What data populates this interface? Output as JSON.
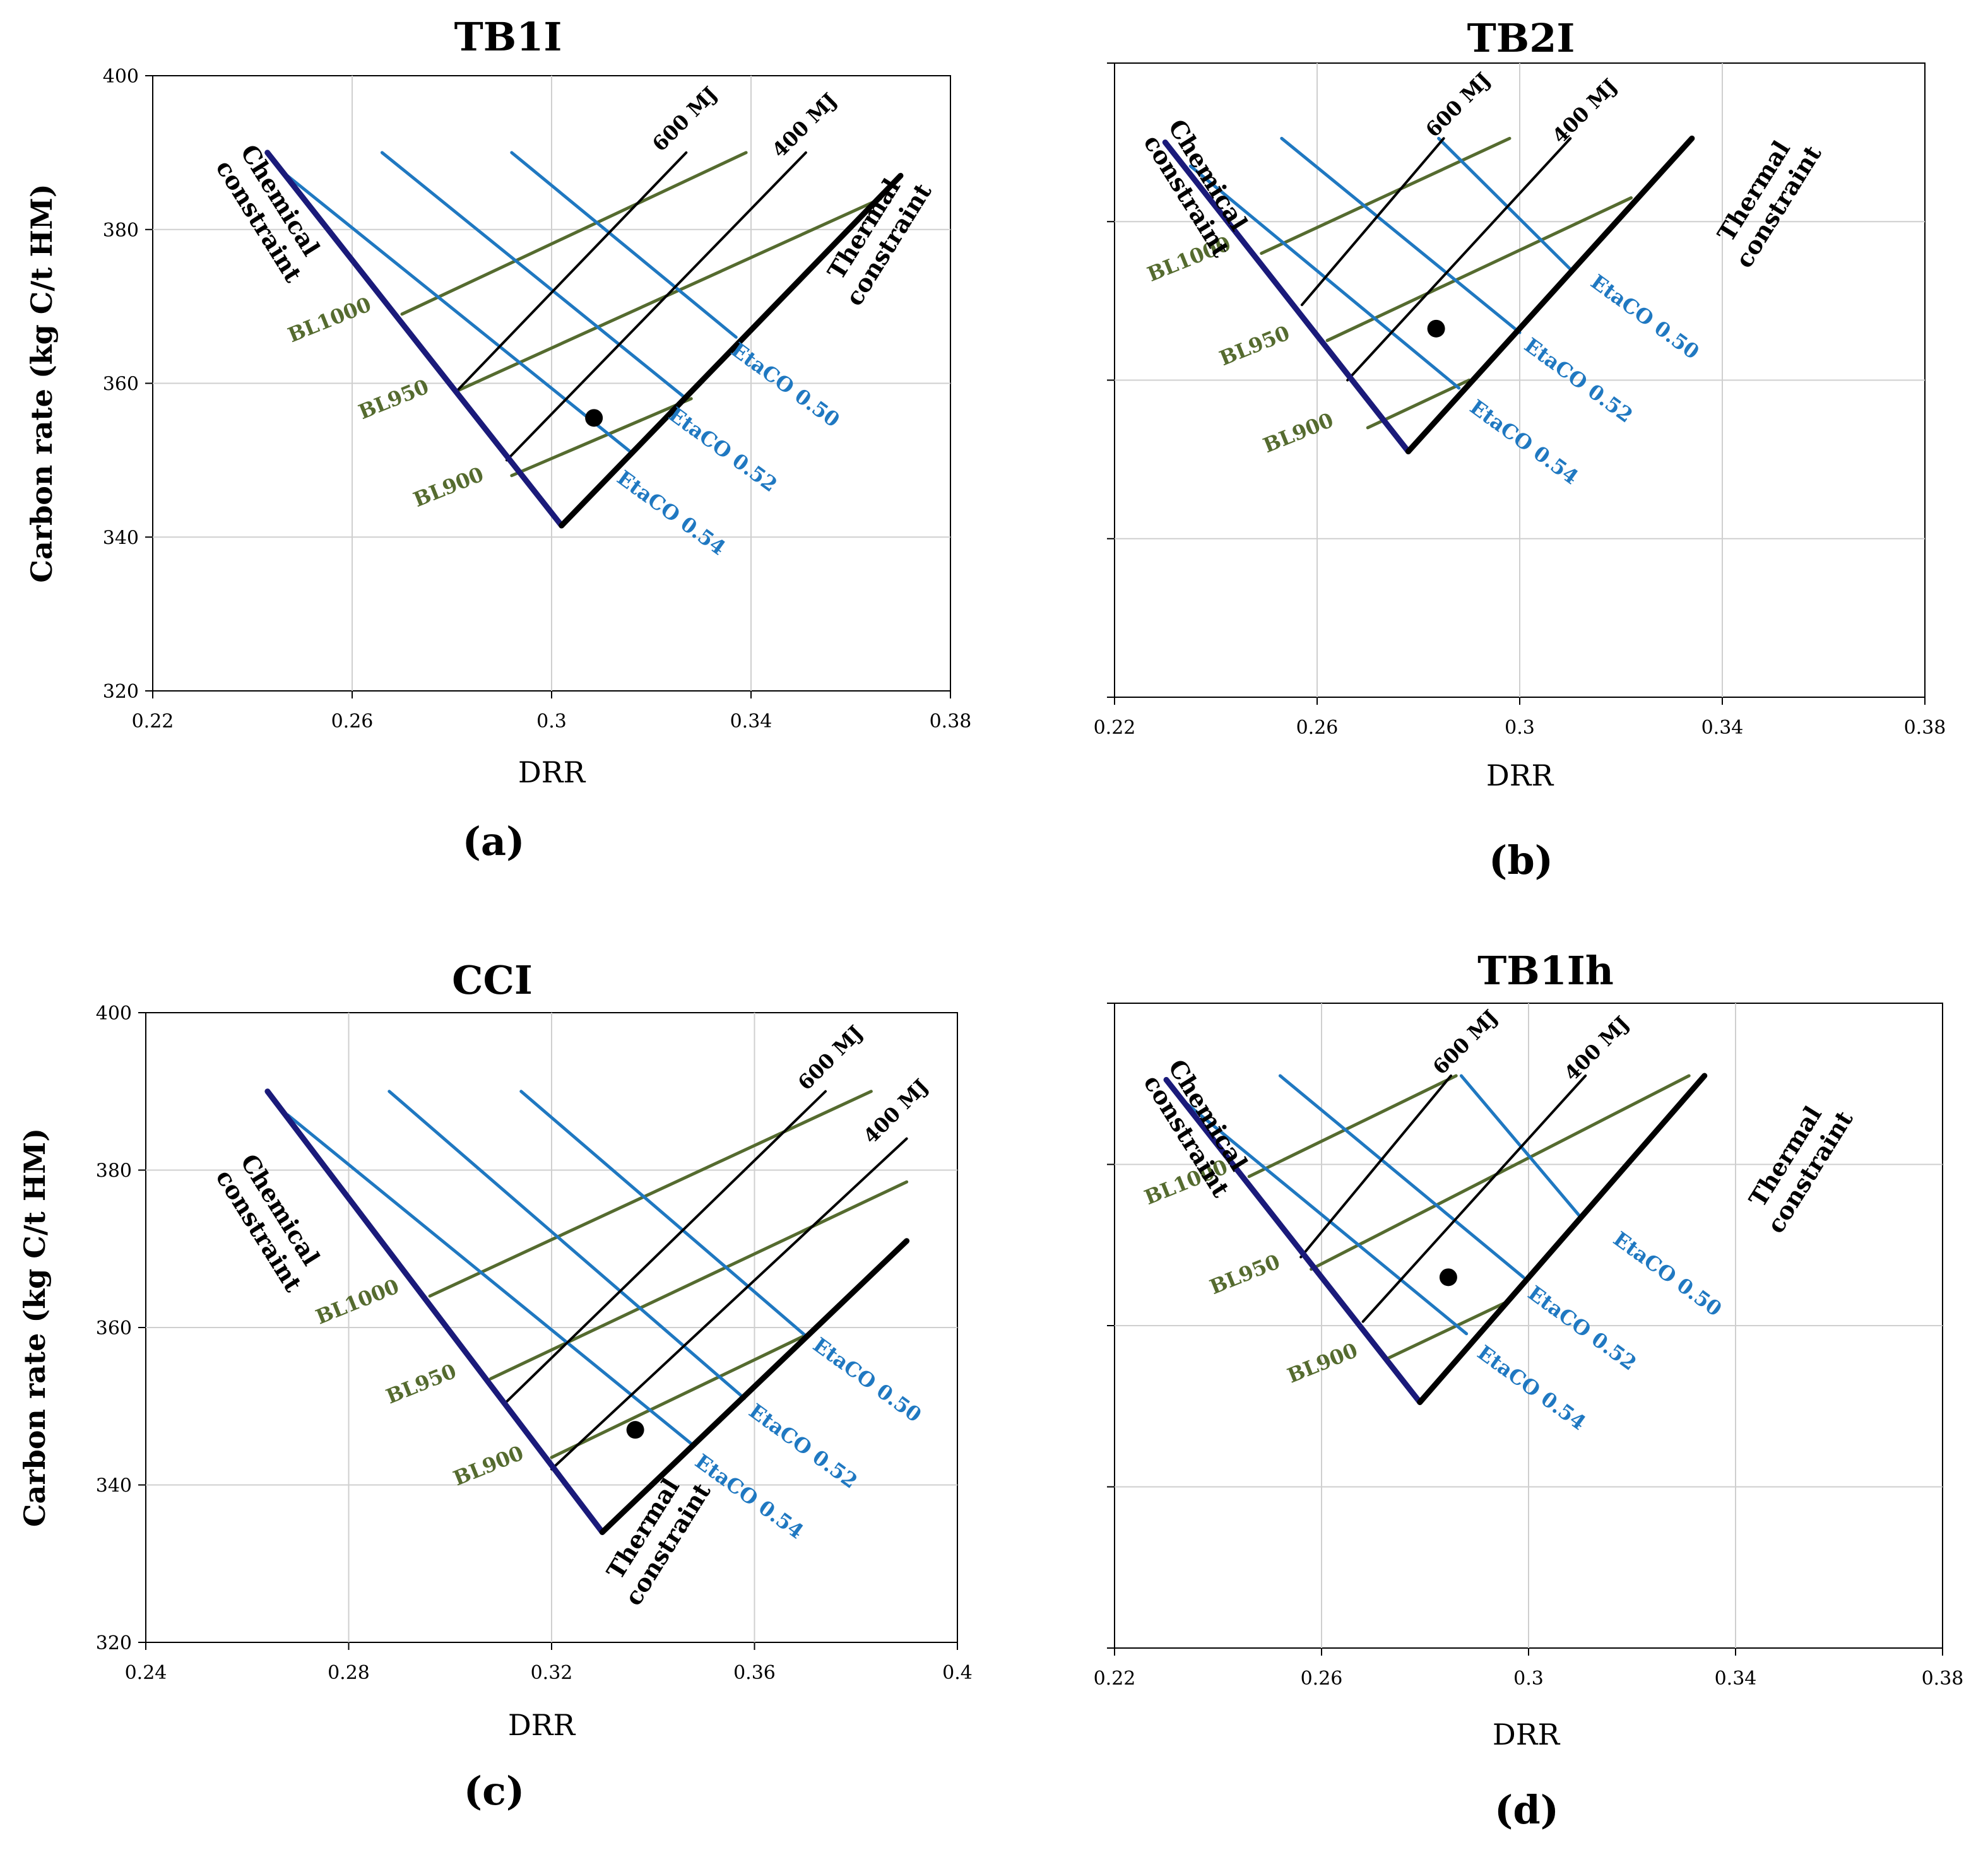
{
  "figure": {
    "ylabel": "Carbon rate (kg C/t HM)",
    "xlabel": "DRR"
  },
  "colors": {
    "chemical_constraint": "#1a1a7a",
    "thermal_constraint": "#000000",
    "etaco": "#1f78c1",
    "bl": "#556b2f",
    "mj": "#000000",
    "grid": "#cfcfcf"
  },
  "chart_data": [
    {
      "type": "line",
      "title": "TB1I",
      "panel_label": "(a)",
      "xlabel": "DRR",
      "ylabel": "Carbon rate (kg C/t HM)",
      "xlim": [
        0.22,
        0.38
      ],
      "ylim": [
        320,
        400
      ],
      "xticks": [
        "0.22",
        "0.26",
        "0.3",
        "0.34",
        "0.38"
      ],
      "yticks": [
        "320",
        "340",
        "360",
        "380",
        "400"
      ],
      "show_ytick_labels": true,
      "grid": true,
      "chemical_label": [
        "Chemical",
        "constraint"
      ],
      "thermal_label": [
        "Thermal",
        "constraint"
      ],
      "series": [
        {
          "name": "Chemical constraint",
          "group": "chemical",
          "x": [
            0.243,
            0.302
          ],
          "y": [
            390,
            341.5
          ]
        },
        {
          "name": "Thermal constraint",
          "group": "thermal",
          "x": [
            0.302,
            0.37
          ],
          "y": [
            341.5,
            387
          ]
        },
        {
          "name": "EtaCO 0.50",
          "group": "etaco",
          "x": [
            0.292,
            0.337
          ],
          "y": [
            390,
            366
          ]
        },
        {
          "name": "EtaCO 0.52",
          "group": "etaco",
          "x": [
            0.266,
            0.327
          ],
          "y": [
            390,
            358
          ]
        },
        {
          "name": "EtaCO 0.54",
          "group": "etaco",
          "x": [
            0.247,
            0.316
          ],
          "y": [
            387,
            351
          ]
        },
        {
          "name": "BL1000",
          "group": "bl",
          "x": [
            0.27,
            0.339
          ],
          "y": [
            369,
            390
          ]
        },
        {
          "name": "BL950",
          "group": "bl",
          "x": [
            0.281,
            0.366
          ],
          "y": [
            359,
            384
          ]
        },
        {
          "name": "BL900",
          "group": "bl",
          "x": [
            0.292,
            0.328
          ],
          "y": [
            348,
            358
          ]
        },
        {
          "name": "600 MJ",
          "group": "mj",
          "x": [
            0.281,
            0.327
          ],
          "y": [
            359,
            390
          ]
        },
        {
          "name": "400 MJ",
          "group": "mj",
          "x": [
            0.291,
            0.351
          ],
          "y": [
            350,
            390
          ]
        }
      ],
      "labels": [
        {
          "text": "BL1000",
          "group": "bl"
        },
        {
          "text": "BL950",
          "group": "bl"
        },
        {
          "text": "BL900",
          "group": "bl"
        },
        {
          "text": "EtaCO 0.50",
          "group": "etaco"
        },
        {
          "text": "EtaCO 0.52",
          "group": "etaco"
        },
        {
          "text": "EtaCO 0.54",
          "group": "etaco"
        },
        {
          "text": "600 MJ",
          "group": "mj"
        },
        {
          "text": "400 MJ",
          "group": "mj"
        }
      ],
      "point": {
        "x": 0.3085,
        "y": 355.5
      }
    },
    {
      "type": "line",
      "title": "TB2I",
      "panel_label": "(b)",
      "xlabel": "DRR",
      "ylabel": "",
      "xlim": [
        0.22,
        0.38
      ],
      "ylim": [
        320,
        400
      ],
      "xticks": [
        "0.22",
        "0.26",
        "0.3",
        "0.34",
        "0.38"
      ],
      "yticks": [
        "320",
        "340",
        "360",
        "380",
        "400"
      ],
      "show_ytick_labels": false,
      "grid": true,
      "chemical_label": [
        "Chemical",
        "constraint"
      ],
      "thermal_label": [
        "Thermal",
        "constraint"
      ],
      "series": [
        {
          "name": "Chemical constraint",
          "group": "chemical",
          "x": [
            0.23,
            0.278
          ],
          "y": [
            390,
            351
          ]
        },
        {
          "name": "Thermal constraint",
          "group": "thermal",
          "x": [
            0.278,
            0.334
          ],
          "y": [
            351,
            390.5
          ]
        },
        {
          "name": "EtaCO 0.50",
          "group": "etaco",
          "x": [
            0.284,
            0.31
          ],
          "y": [
            390.5,
            374
          ]
        },
        {
          "name": "EtaCO 0.52",
          "group": "etaco",
          "x": [
            0.253,
            0.3
          ],
          "y": [
            390.5,
            366
          ]
        },
        {
          "name": "EtaCO 0.54",
          "group": "etaco",
          "x": [
            0.235,
            0.288
          ],
          "y": [
            387,
            359
          ]
        },
        {
          "name": "BL1000",
          "group": "bl",
          "x": [
            0.249,
            0.298
          ],
          "y": [
            376,
            390.5
          ]
        },
        {
          "name": "BL950",
          "group": "bl",
          "x": [
            0.262,
            0.322
          ],
          "y": [
            365,
            383
          ]
        },
        {
          "name": "BL900",
          "group": "bl",
          "x": [
            0.27,
            0.29
          ],
          "y": [
            354,
            360
          ]
        },
        {
          "name": "600 MJ",
          "group": "mj",
          "x": [
            0.257,
            0.285
          ],
          "y": [
            369.5,
            390.5
          ]
        },
        {
          "name": "400 MJ",
          "group": "mj",
          "x": [
            0.266,
            0.31
          ],
          "y": [
            360,
            390.5
          ]
        }
      ],
      "labels": [
        {
          "text": "BL1000",
          "group": "bl"
        },
        {
          "text": "BL950",
          "group": "bl"
        },
        {
          "text": "BL900",
          "group": "bl"
        },
        {
          "text": "EtaCO 0.50",
          "group": "etaco"
        },
        {
          "text": "EtaCO 0.52",
          "group": "etaco"
        },
        {
          "text": "EtaCO 0.54",
          "group": "etaco"
        },
        {
          "text": "600 MJ",
          "group": "mj"
        },
        {
          "text": "400 MJ",
          "group": "mj"
        }
      ],
      "point": {
        "x": 0.2835,
        "y": 366.5
      }
    },
    {
      "type": "line",
      "title": "CCI",
      "panel_label": "(c)",
      "xlabel": "DRR",
      "ylabel": "Carbon rate (kg C/t HM)",
      "xlim": [
        0.24,
        0.4
      ],
      "ylim": [
        320,
        400
      ],
      "xticks": [
        "0.24",
        "0.28",
        "0.32",
        "0.36",
        "0.4"
      ],
      "yticks": [
        "320",
        "340",
        "360",
        "380",
        "400"
      ],
      "show_ytick_labels": true,
      "grid": true,
      "chemical_label": [
        "Chemical",
        "constraint"
      ],
      "thermal_label": [
        "Thermal",
        "constraint"
      ],
      "series": [
        {
          "name": "Chemical constraint",
          "group": "chemical",
          "x": [
            0.264,
            0.33
          ],
          "y": [
            390,
            334
          ]
        },
        {
          "name": "Thermal constraint",
          "group": "thermal",
          "x": [
            0.33,
            0.39
          ],
          "y": [
            334,
            371
          ]
        },
        {
          "name": "EtaCO 0.50",
          "group": "etaco",
          "x": [
            0.314,
            0.37
          ],
          "y": [
            390,
            359
          ]
        },
        {
          "name": "EtaCO 0.52",
          "group": "etaco",
          "x": [
            0.288,
            0.358
          ],
          "y": [
            390,
            351
          ]
        },
        {
          "name": "EtaCO 0.54",
          "group": "etaco",
          "x": [
            0.268,
            0.348
          ],
          "y": [
            387,
            345
          ]
        },
        {
          "name": "BL1000",
          "group": "bl",
          "x": [
            0.296,
            0.383
          ],
          "y": [
            364,
            390
          ]
        },
        {
          "name": "BL950",
          "group": "bl",
          "x": [
            0.308,
            0.39
          ],
          "y": [
            353.5,
            378.5
          ]
        },
        {
          "name": "BL900",
          "group": "bl",
          "x": [
            0.32,
            0.37
          ],
          "y": [
            343.5,
            359
          ]
        },
        {
          "name": "600 MJ",
          "group": "mj",
          "x": [
            0.311,
            0.374
          ],
          "y": [
            350.5,
            390
          ]
        },
        {
          "name": "400 MJ",
          "group": "mj",
          "x": [
            0.32,
            0.39
          ],
          "y": [
            342,
            384
          ]
        }
      ],
      "labels": [
        {
          "text": "BL1000",
          "group": "bl"
        },
        {
          "text": "BL950",
          "group": "bl"
        },
        {
          "text": "BL900",
          "group": "bl"
        },
        {
          "text": "EtaCO 0.50",
          "group": "etaco"
        },
        {
          "text": "EtaCO 0.52",
          "group": "etaco"
        },
        {
          "text": "EtaCO 0.54",
          "group": "etaco"
        },
        {
          "text": "600 MJ",
          "group": "mj"
        },
        {
          "text": "400 MJ",
          "group": "mj"
        }
      ],
      "point": {
        "x": 0.3365,
        "y": 347
      }
    },
    {
      "type": "line",
      "title": "TB1Ih",
      "panel_label": "(d)",
      "xlabel": "DRR",
      "ylabel": "",
      "xlim": [
        0.22,
        0.38
      ],
      "ylim": [
        320,
        400
      ],
      "xticks": [
        "0.22",
        "0.26",
        "0.3",
        "0.34",
        "0.38"
      ],
      "yticks": [
        "320",
        "340",
        "360",
        "380",
        "400"
      ],
      "show_ytick_labels": false,
      "grid": true,
      "chemical_label": [
        "Chemical",
        "constraint"
      ],
      "thermal_label": [
        "Thermal",
        "constraint"
      ],
      "series": [
        {
          "name": "Chemical constraint",
          "group": "chemical",
          "x": [
            0.23,
            0.279
          ],
          "y": [
            390.5,
            350.5
          ]
        },
        {
          "name": "Thermal constraint",
          "group": "thermal",
          "x": [
            0.279,
            0.334
          ],
          "y": [
            350.5,
            391
          ]
        },
        {
          "name": "EtaCO 0.50",
          "group": "etaco",
          "x": [
            0.287,
            0.31
          ],
          "y": [
            391,
            373.5
          ]
        },
        {
          "name": "EtaCO 0.52",
          "group": "etaco",
          "x": [
            0.252,
            0.299
          ],
          "y": [
            391,
            366
          ]
        },
        {
          "name": "EtaCO 0.54",
          "group": "etaco",
          "x": [
            0.234,
            0.288
          ],
          "y": [
            387.5,
            359
          ]
        },
        {
          "name": "BL1000",
          "group": "bl",
          "x": [
            0.246,
            0.286
          ],
          "y": [
            378.5,
            391
          ]
        },
        {
          "name": "BL950",
          "group": "bl",
          "x": [
            0.258,
            0.331
          ],
          "y": [
            367,
            391
          ]
        },
        {
          "name": "BL900",
          "group": "bl",
          "x": [
            0.273,
            0.296
          ],
          "y": [
            356,
            363
          ]
        },
        {
          "name": "600 MJ",
          "group": "mj",
          "x": [
            0.256,
            0.285
          ],
          "y": [
            368.5,
            391
          ]
        },
        {
          "name": "400 MJ",
          "group": "mj",
          "x": [
            0.268,
            0.311
          ],
          "y": [
            360.5,
            391
          ]
        }
      ],
      "labels": [
        {
          "text": "BL1000",
          "group": "bl"
        },
        {
          "text": "BL950",
          "group": "bl"
        },
        {
          "text": "BL900",
          "group": "bl"
        },
        {
          "text": "EtaCO 0.50",
          "group": "etaco"
        },
        {
          "text": "EtaCO 0.52",
          "group": "etaco"
        },
        {
          "text": "EtaCO 0.54",
          "group": "etaco"
        },
        {
          "text": "600 MJ",
          "group": "mj"
        },
        {
          "text": "400 MJ",
          "group": "mj"
        }
      ],
      "point": {
        "x": 0.2845,
        "y": 366
      }
    }
  ]
}
